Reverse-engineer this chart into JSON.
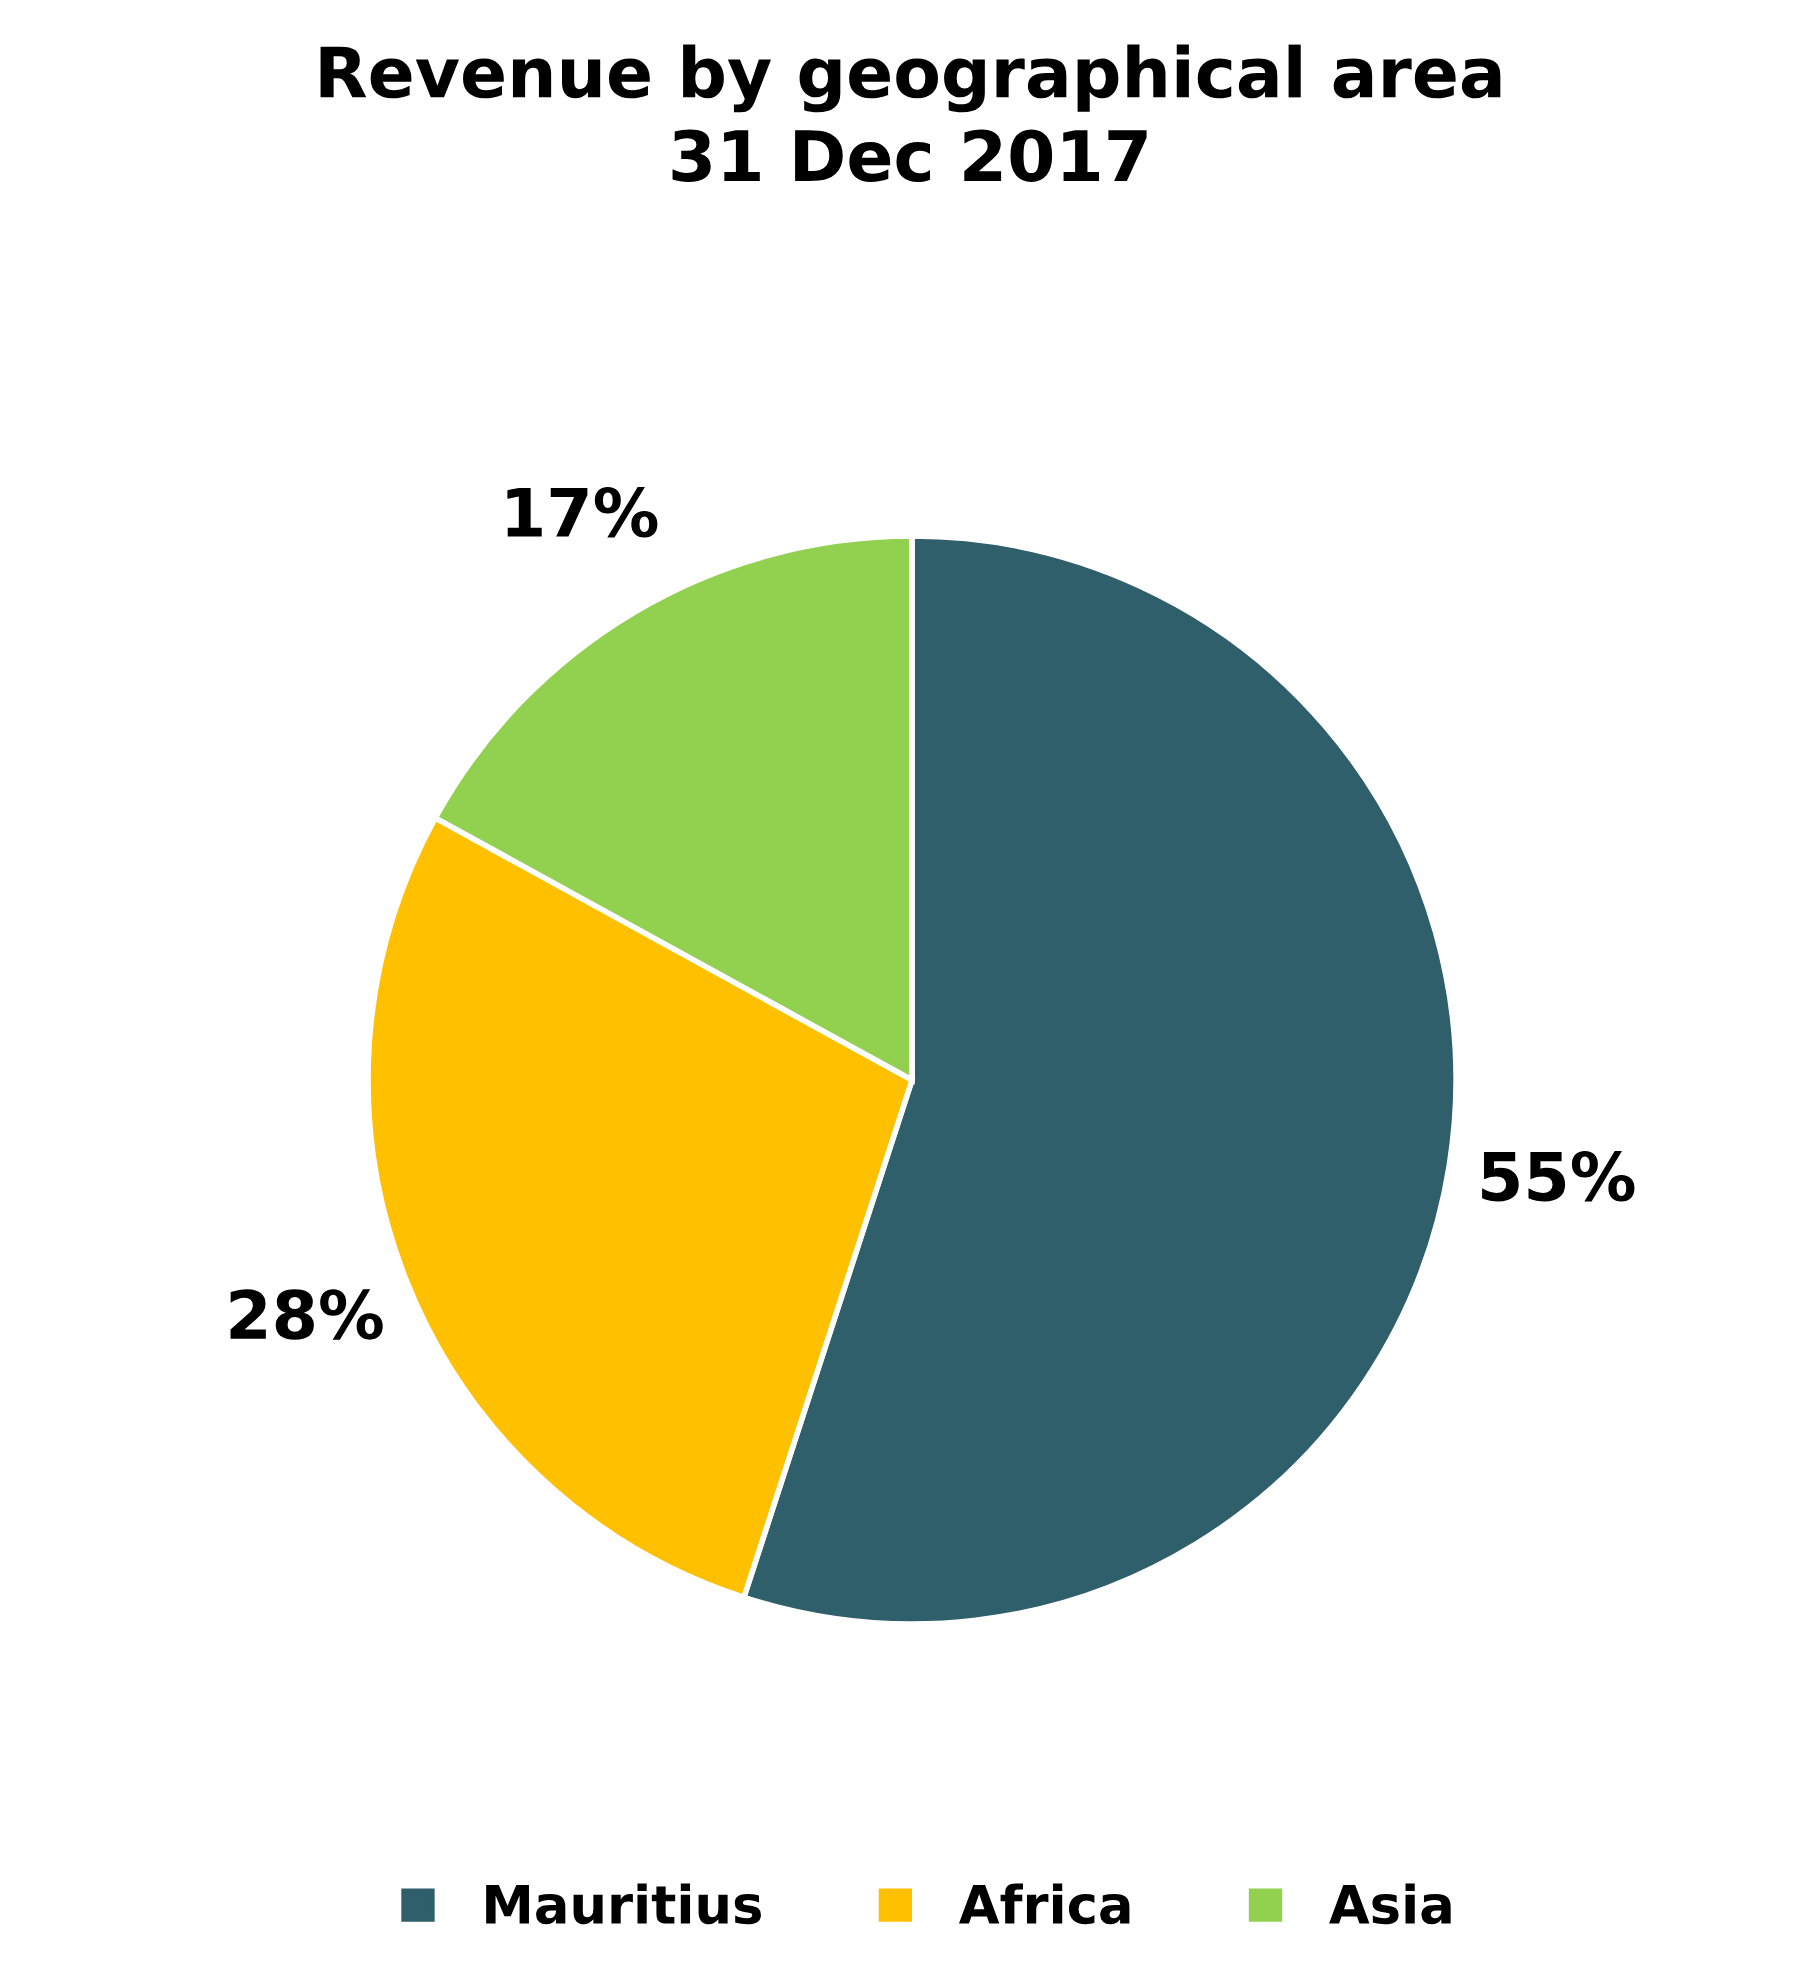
{
  "chart_data": {
    "type": "pie",
    "title": "Revenue by geographical area\n31 Dec 2017",
    "categories": [
      "Mauritius",
      "Africa",
      "Asia"
    ],
    "values": [
      55,
      28,
      17
    ],
    "colors": [
      "#2e5f6b",
      "#ffc000",
      "#92d050"
    ],
    "value_labels": [
      "55%",
      "28%",
      "17%"
    ],
    "legend": "bottom"
  }
}
